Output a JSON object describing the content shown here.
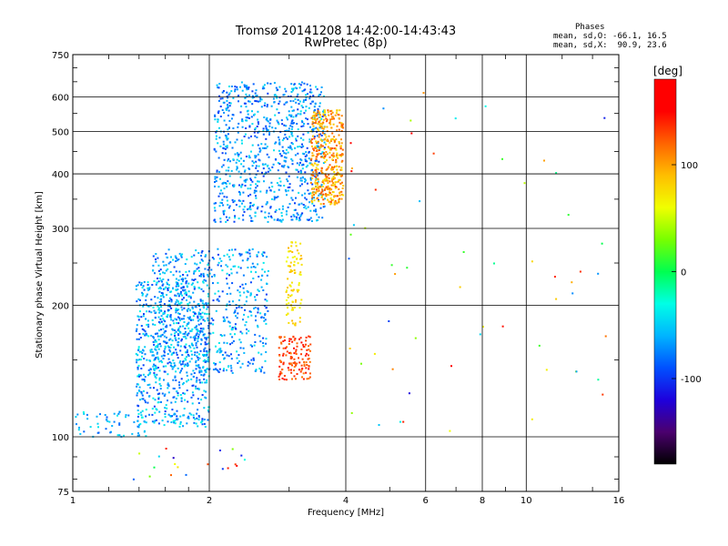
{
  "chart_data": {
    "type": "scatter",
    "title": "Tromsø 20141208 14:42:00-14:43:43",
    "subtitle": "RwPretec (8p)",
    "xlabel": "Frequency [MHz]",
    "ylabel": "Stationary phase Virtual Height [km]",
    "x_scale": "log",
    "y_scale": "log",
    "xlim": [
      1,
      16
    ],
    "ylim": [
      75,
      750
    ],
    "x_ticks": [
      1,
      2,
      4,
      6,
      8,
      10,
      16
    ],
    "y_ticks": [
      75,
      100,
      200,
      300,
      400,
      500,
      600,
      750
    ],
    "grid": true,
    "phase_info": {
      "heading": "Phases",
      "o_line": "mean, sd,O: -66.1, 16.5",
      "x_line": "mean, sd,X:  90.9, 23.6"
    },
    "colorbar": {
      "unit": "[deg]",
      "range": [
        -180,
        180
      ],
      "tick_labels": [
        "100",
        "0",
        "-100"
      ],
      "tick_values": [
        100,
        0,
        -100
      ],
      "colormap": [
        "#000000",
        "#4b006e",
        "#1e00dc",
        "#0050ff",
        "#00b4ff",
        "#00ffe6",
        "#00ff50",
        "#78ff00",
        "#f0ff00",
        "#ffbe00",
        "#ff6400",
        "#ff0000",
        "#ff0000"
      ]
    },
    "clusters": [
      {
        "f": [
          2.05,
          3.6
        ],
        "h": [
          310,
          650
        ],
        "n": 900,
        "phase": [
          -100,
          -40
        ]
      },
      {
        "f": [
          3.35,
          3.95
        ],
        "h": [
          340,
          560
        ],
        "n": 420,
        "phase": [
          70,
          130
        ]
      },
      {
        "f": [
          1.38,
          2.0
        ],
        "h": [
          105,
          230
        ],
        "n": 650,
        "phase": [
          -100,
          -30
        ]
      },
      {
        "f": [
          1.5,
          2.7
        ],
        "h": [
          140,
          270
        ],
        "n": 650,
        "phase": [
          -100,
          -35
        ]
      },
      {
        "f": [
          1.0,
          1.45
        ],
        "h": [
          100,
          115
        ],
        "n": 60,
        "phase": [
          -90,
          -30
        ]
      },
      {
        "f": [
          2.85,
          3.35
        ],
        "h": [
          135,
          170
        ],
        "n": 130,
        "phase": [
          110,
          150
        ]
      },
      {
        "f": [
          2.95,
          3.2
        ],
        "h": [
          180,
          280
        ],
        "n": 90,
        "phase": [
          60,
          95
        ]
      },
      {
        "f": [
          4.0,
          15.0
        ],
        "h": [
          100,
          650
        ],
        "n": 60,
        "phase": [
          -120,
          160
        ]
      },
      {
        "f": [
          1.35,
          2.6
        ],
        "h": [
          75,
          95
        ],
        "n": 20,
        "phase": [
          -130,
          150
        ]
      }
    ]
  }
}
